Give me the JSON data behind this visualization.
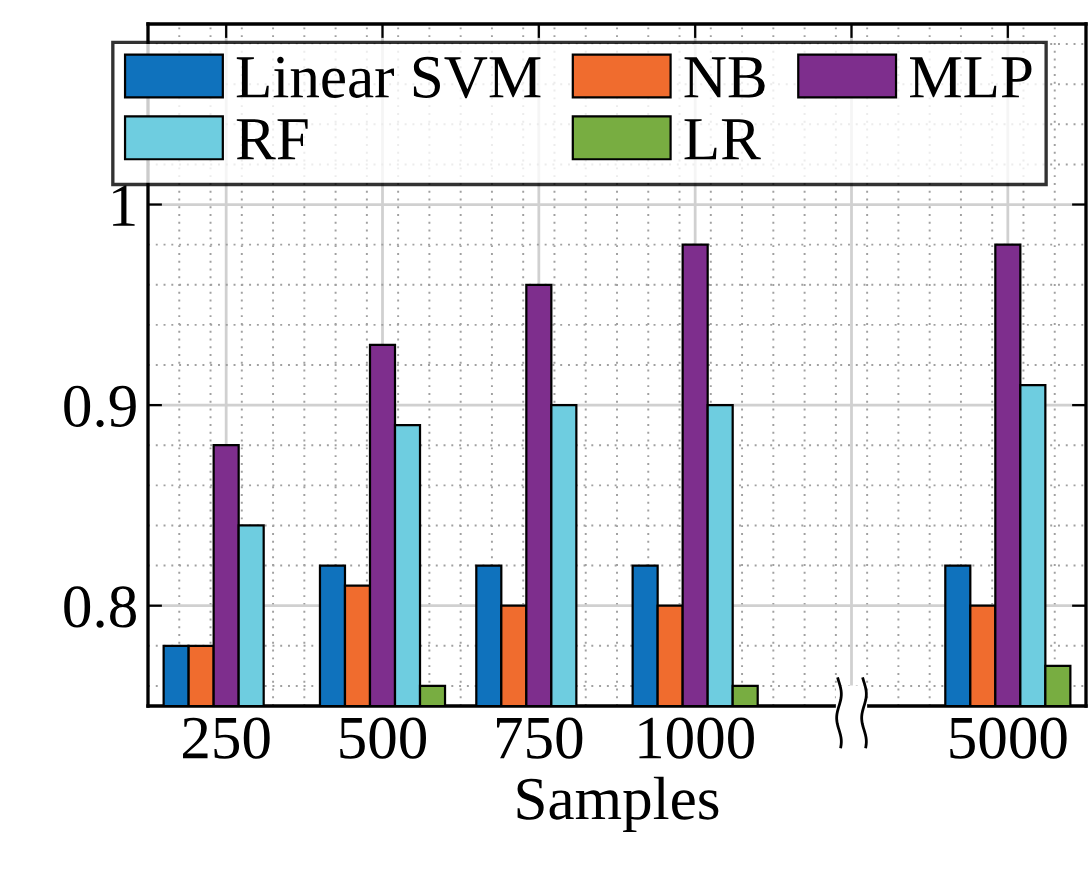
{
  "chart_data": {
    "type": "bar",
    "xlabel": "Samples",
    "categories": [
      "250",
      "500",
      "750",
      "1000",
      null,
      "5000"
    ],
    "series": [
      {
        "name": "Linear SVM",
        "color": "#0f72bd",
        "values": [
          0.78,
          0.82,
          0.82,
          0.82,
          null,
          0.82
        ]
      },
      {
        "name": "NB",
        "color": "#f06c2e",
        "values": [
          0.78,
          0.81,
          0.8,
          0.8,
          null,
          0.8
        ]
      },
      {
        "name": "MLP",
        "color": "#7e2e8d",
        "values": [
          0.88,
          0.93,
          0.96,
          0.98,
          null,
          0.98
        ]
      },
      {
        "name": "RF",
        "color": "#6ecde0",
        "values": [
          0.84,
          0.89,
          0.9,
          0.9,
          null,
          0.91
        ]
      },
      {
        "name": "LR",
        "color": "#78ad41",
        "values": [
          null,
          0.76,
          null,
          0.76,
          null,
          0.77
        ]
      }
    ],
    "ylim": [
      0.75,
      1.09
    ],
    "yticks": [
      0.8,
      0.9,
      1
    ],
    "grid": true,
    "legend": "top"
  }
}
